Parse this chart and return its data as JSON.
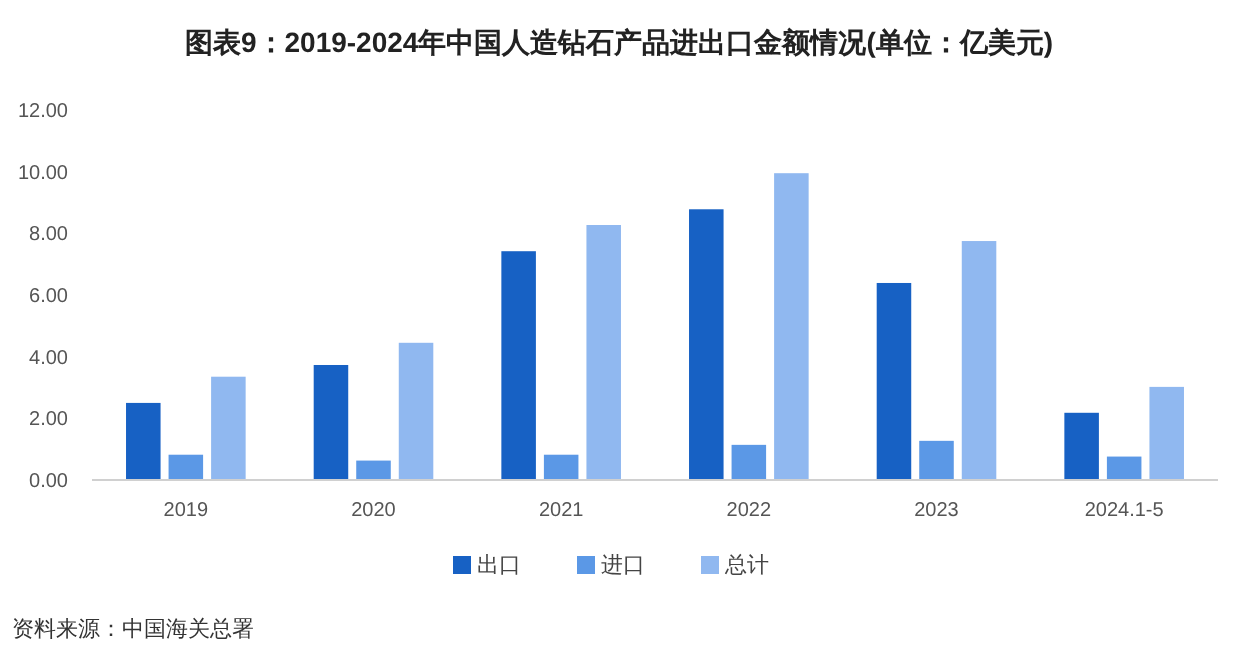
{
  "chart_data": {
    "type": "bar",
    "title": "图表9：2019-2024年中国人造钻石产品进出口金额情况(单位：亿美元)",
    "categories": [
      "2019",
      "2020",
      "2021",
      "2022",
      "2023",
      "2024.1-5"
    ],
    "series": [
      {
        "name": "出口",
        "color": "#1761c4",
        "values": [
          2.5,
          3.73,
          7.42,
          8.78,
          6.39,
          2.18
        ]
      },
      {
        "name": "进口",
        "color": "#5b98e6",
        "values": [
          0.82,
          0.63,
          0.82,
          1.14,
          1.27,
          0.76
        ]
      },
      {
        "name": "总计",
        "color": "#90b8f0",
        "values": [
          3.35,
          4.45,
          8.27,
          9.95,
          7.75,
          3.02
        ]
      }
    ],
    "ylim": [
      0,
      12
    ],
    "yticks": [
      {
        "value": 0,
        "label": "0.00"
      },
      {
        "value": 2,
        "label": "2.00"
      },
      {
        "value": 4,
        "label": "4.00"
      },
      {
        "value": 6,
        "label": "6.00"
      },
      {
        "value": 8,
        "label": "8.00"
      },
      {
        "value": 10,
        "label": "10.00"
      },
      {
        "value": 12,
        "label": "12.00"
      }
    ],
    "grid": false,
    "legend": "bottom",
    "annotations": [
      "资料来源：中国海关总署"
    ]
  }
}
